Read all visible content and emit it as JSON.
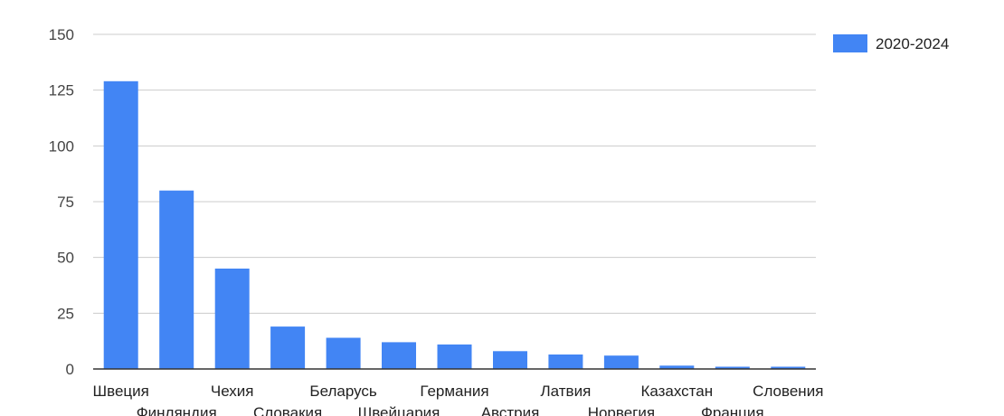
{
  "chart_data": {
    "type": "bar",
    "categories": [
      "Швеция",
      "Финляндия",
      "Чехия",
      "Словакия",
      "Беларусь",
      "Швейцария",
      "Германия",
      "Австрия",
      "Латвия",
      "Норвегия",
      "Казахстан",
      "Франция",
      "Словения"
    ],
    "series": [
      {
        "name": "2020-2024",
        "color": "#4285f4",
        "values": [
          129,
          80,
          45,
          19,
          14,
          12,
          11,
          8,
          6.5,
          6,
          1.5,
          1,
          1
        ]
      }
    ],
    "yticks": [
      0,
      25,
      50,
      75,
      100,
      125,
      150
    ],
    "ylim": [
      0,
      150
    ],
    "grid": true,
    "legend_position": "right-top",
    "title": "",
    "xlabel": "",
    "ylabel": ""
  }
}
